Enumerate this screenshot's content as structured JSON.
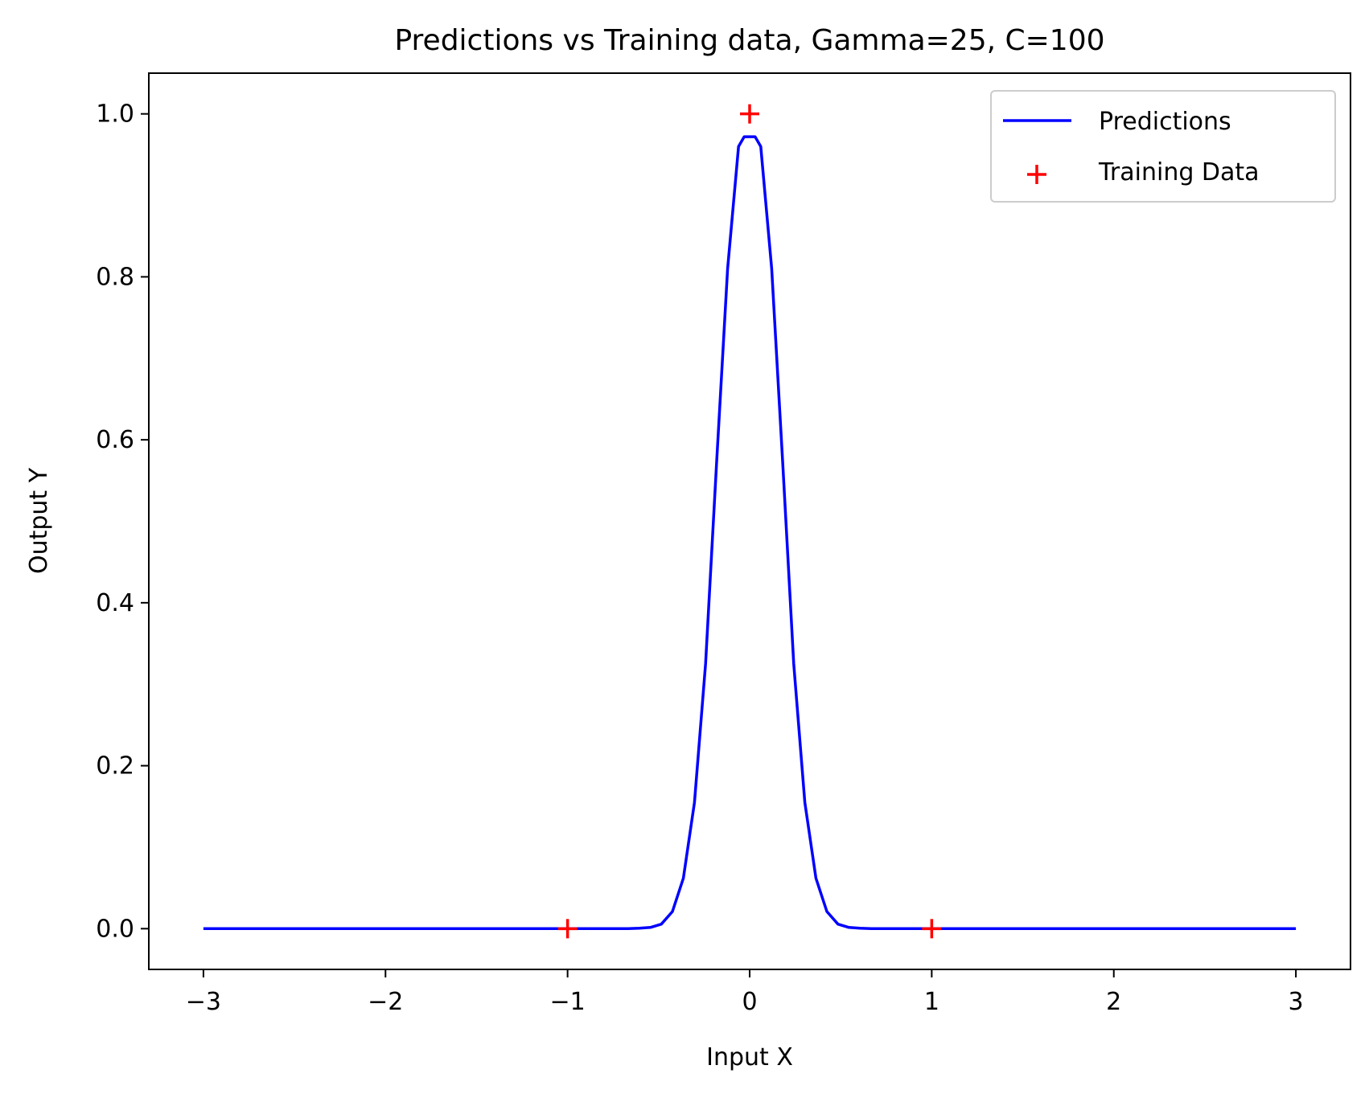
{
  "chart_data": {
    "type": "line",
    "title": "Predictions vs Training data, Gamma=25, C=100",
    "xlabel": "Input X",
    "ylabel": "Output Y",
    "xlim": [
      -3.3,
      3.3
    ],
    "ylim": [
      -0.05,
      1.05
    ],
    "xticks": [
      -3,
      -2,
      -1,
      0,
      1,
      2,
      3
    ],
    "xtick_labels": [
      "−3",
      "−2",
      "−1",
      "0",
      "1",
      "2",
      "3"
    ],
    "yticks": [
      0.0,
      0.2,
      0.4,
      0.6,
      0.8,
      1.0
    ],
    "ytick_labels": [
      "0.0",
      "0.2",
      "0.4",
      "0.6",
      "0.8",
      "1.0"
    ],
    "grid": false,
    "legend_position": "top-right",
    "series": [
      {
        "name": "Predictions",
        "kind": "line",
        "color": "#0000ff",
        "x": [
          -3.0,
          -0.727,
          -0.667,
          -0.606,
          -0.545,
          -0.485,
          -0.424,
          -0.364,
          -0.303,
          -0.242,
          -0.182,
          -0.121,
          -0.061,
          -0.03,
          0.03,
          0.061,
          0.121,
          0.182,
          0.242,
          0.303,
          0.364,
          0.424,
          0.485,
          0.545,
          0.606,
          0.667,
          0.727,
          3.0
        ],
        "y": [
          0.0,
          0.0,
          0.0,
          0.0005,
          0.0015,
          0.0055,
          0.021,
          0.062,
          0.155,
          0.325,
          0.57,
          0.81,
          0.96,
          0.972,
          0.972,
          0.96,
          0.81,
          0.57,
          0.325,
          0.155,
          0.062,
          0.021,
          0.0055,
          0.0015,
          0.0005,
          0.0,
          0.0,
          0.0
        ]
      },
      {
        "name": "Training Data",
        "kind": "scatter",
        "marker": "+",
        "color": "#ff0000",
        "x": [
          -1,
          0,
          1
        ],
        "y": [
          0,
          1,
          0
        ]
      }
    ]
  }
}
